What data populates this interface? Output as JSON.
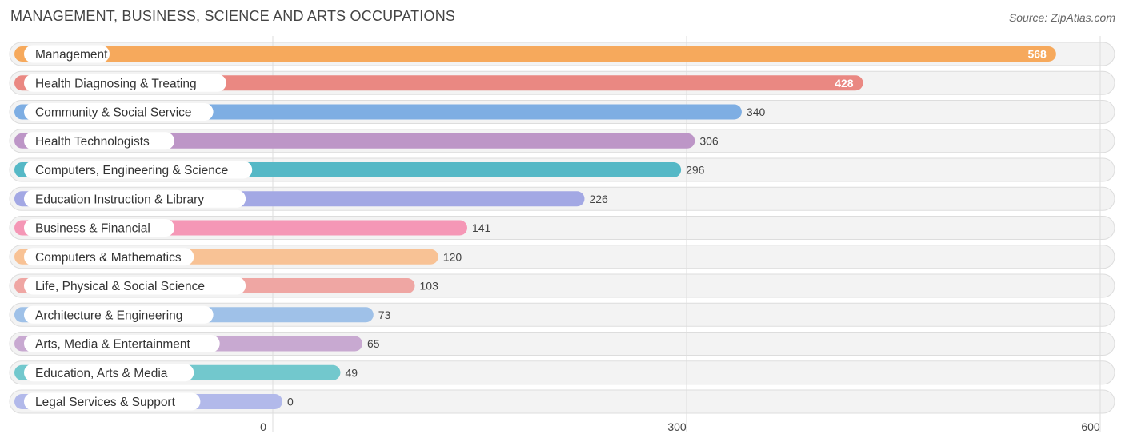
{
  "title": "MANAGEMENT, BUSINESS, SCIENCE AND ARTS OCCUPATIONS",
  "source": "Source: ZipAtlas.com",
  "chart_data": {
    "type": "bar",
    "orientation": "horizontal",
    "title": "MANAGEMENT, BUSINESS, SCIENCE AND ARTS OCCUPATIONS",
    "categories": [
      "Management",
      "Health Diagnosing & Treating",
      "Community & Social Service",
      "Health Technologists",
      "Computers, Engineering & Science",
      "Education Instruction & Library",
      "Business & Financial",
      "Computers & Mathematics",
      "Life, Physical & Social Science",
      "Architecture & Engineering",
      "Arts, Media & Entertainment",
      "Education, Arts & Media",
      "Legal Services & Support"
    ],
    "values": [
      568,
      428,
      340,
      306,
      296,
      226,
      141,
      120,
      103,
      73,
      65,
      49,
      0
    ],
    "value_labels": [
      "568",
      "428",
      "340",
      "306",
      "296",
      "226",
      "141",
      "120",
      "103",
      "73",
      "65",
      "49",
      "0"
    ],
    "colors": [
      "#f6a95c",
      "#ea8882",
      "#7eaee3",
      "#bd96c7",
      "#55b8c6",
      "#a3a8e4",
      "#f597b6",
      "#f8c295",
      "#efa6a3",
      "#9fc1e8",
      "#c8a9d1",
      "#72c8cd",
      "#b2b9ea"
    ],
    "xticks": [
      0,
      300,
      600
    ],
    "xtick_labels": [
      "0",
      "300",
      "600"
    ],
    "xlim": [
      0,
      600
    ],
    "grid": true
  }
}
